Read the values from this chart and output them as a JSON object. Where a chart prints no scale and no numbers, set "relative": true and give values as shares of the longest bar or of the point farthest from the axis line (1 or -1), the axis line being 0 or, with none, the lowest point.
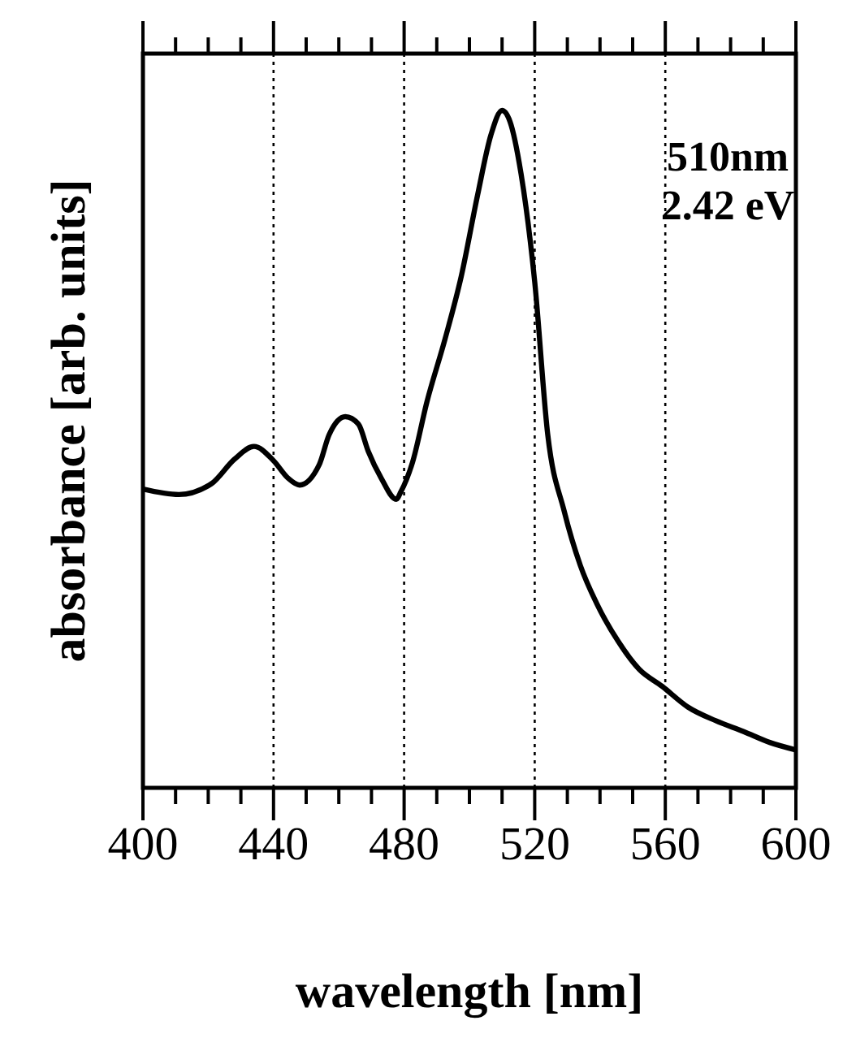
{
  "chart_data": {
    "type": "line",
    "relative": true,
    "xlabel": "wavelength [nm]",
    "ylabel": "absorbance [arb. units]",
    "annotations": [
      "510nm",
      "2.42 eV"
    ],
    "xlim": [
      400,
      600
    ],
    "xticks": [
      400,
      {
        "value": 410,
        "label": null
      },
      {
        "value": 420,
        "label": null
      },
      {
        "value": 430,
        "label": null
      },
      440,
      {
        "value": 450,
        "label": null
      },
      {
        "value": 460,
        "label": null
      },
      {
        "value": 470,
        "label": null
      },
      480,
      {
        "value": 490,
        "label": null
      },
      {
        "value": 500,
        "label": null
      },
      {
        "value": 510,
        "label": null
      },
      520,
      {
        "value": 530,
        "label": null
      },
      {
        "value": 540,
        "label": null
      },
      {
        "value": 550,
        "label": null
      },
      560,
      {
        "value": 570,
        "label": null
      },
      {
        "value": 580,
        "label": null
      },
      {
        "value": 590,
        "label": null
      },
      600
    ],
    "grid": "x",
    "line_style": "solid",
    "series": [
      {
        "color": "#000000",
        "x": [
          400,
          411,
          421,
          428,
          434,
          440,
          444.5,
          448,
          454,
          457,
          462,
          466,
          469,
          473,
          477.6,
          479,
          482.6,
          487,
          492.5,
          497.5,
          502.5,
          506.6,
          510,
          512.4,
          515.8,
          520,
          524,
          529,
          534,
          539,
          545.6,
          552,
          559,
          567,
          575.5,
          584,
          592,
          600
        ],
        "values": [
          0.441,
          0.433,
          0.449,
          0.485,
          0.504,
          0.483,
          0.457,
          0.447,
          0.477,
          0.521,
          0.548,
          0.537,
          0.497,
          0.457,
          0.426,
          0.437,
          0.481,
          0.57,
          0.662,
          0.755,
          0.875,
          0.964,
          1,
          0.984,
          0.907,
          0.747,
          0.521,
          0.409,
          0.328,
          0.272,
          0.216,
          0.175,
          0.15,
          0.119,
          0.099,
          0.083,
          0.067,
          0.056
        ]
      }
    ]
  }
}
